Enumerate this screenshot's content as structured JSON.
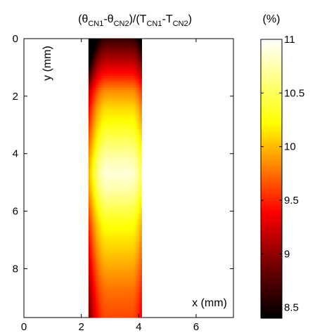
{
  "chart_data": {
    "type": "heatmap",
    "title": {
      "parts": [
        "(θ",
        "CN1",
        "-θ",
        "CN2",
        ")/(T",
        "CN1",
        "-T",
        "CN2",
        ")"
      ]
    },
    "xlabel": "x (mm)",
    "ylabel": "y (mm)",
    "xlim": [
      0,
      7.3
    ],
    "ylim": [
      0,
      9.7
    ],
    "y_reversed": true,
    "x_ticks": [
      0,
      2,
      4,
      6
    ],
    "x_tick_labels": [
      "0",
      "2",
      "4",
      "6"
    ],
    "y_ticks": [
      0,
      2,
      4,
      6,
      8
    ],
    "y_tick_labels": [
      "0",
      "2",
      "4",
      "6",
      "8"
    ],
    "data_region": {
      "x_left": 2.25,
      "x_right": 4.1
    },
    "z_range": [
      8.4,
      11
    ],
    "profile_y": [
      0,
      0.6,
      1.2,
      1.8,
      2.4,
      3.0,
      3.6,
      4.2,
      4.7,
      5.2,
      5.8,
      6.4,
      7.0,
      7.6,
      8.2,
      8.8,
      9.4,
      9.7
    ],
    "profile_z": [
      8.6,
      9.0,
      9.4,
      9.9,
      10.2,
      10.4,
      10.6,
      10.8,
      10.9,
      10.8,
      10.6,
      10.4,
      10.25,
      10.1,
      9.95,
      9.8,
      9.7,
      9.65
    ],
    "edge_darkening": {
      "left": 0.9,
      "right": 0.35
    },
    "colormap": "hot",
    "grid": false,
    "colorbar": {
      "label": "(%)",
      "ticks": [
        11,
        10.5,
        10,
        9.5,
        9,
        8.5
      ],
      "tick_labels": [
        "11",
        "10.5",
        "10",
        "9.5",
        "9",
        "8.5"
      ],
      "range": [
        8.4,
        11
      ]
    }
  }
}
